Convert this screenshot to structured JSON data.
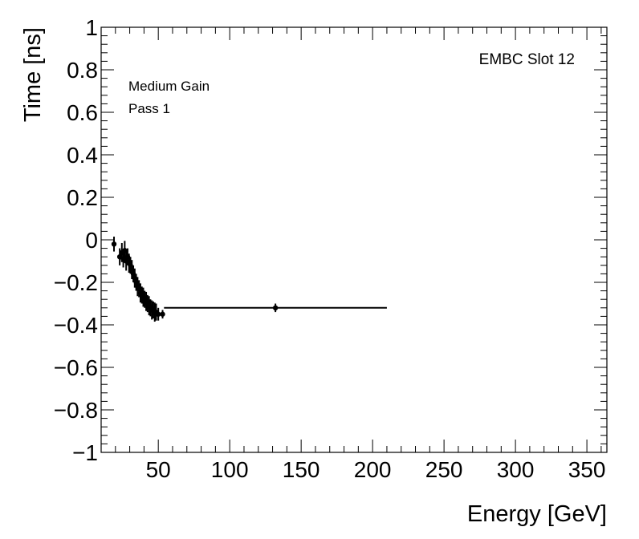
{
  "chart_data": {
    "type": "scatter",
    "title": "",
    "xlabel": "Energy [GeV]",
    "ylabel": "Time [ns]",
    "xlim": [
      10,
      364
    ],
    "ylim": [
      -1,
      1
    ],
    "x_ticks": [
      50,
      100,
      150,
      200,
      250,
      300,
      350
    ],
    "x_tick_labels": [
      "50",
      "100",
      "150",
      "200",
      "250",
      "300",
      "350"
    ],
    "y_ticks": [
      -1,
      -0.8,
      -0.6,
      -0.4,
      -0.2,
      0,
      0.2,
      0.4,
      0.6,
      0.8,
      1
    ],
    "y_tick_labels": [
      "−1",
      "−0.8",
      "−0.6",
      "−0.4",
      "−0.2",
      "0",
      "0.2",
      "0.4",
      "0.6",
      "0.8",
      "1"
    ],
    "grid": false,
    "annotations": {
      "slot": "EMBC Slot 12",
      "gain": "Medium Gain",
      "pass": "Pass 1"
    },
    "series": [
      {
        "values": [
          {
            "x": 19.0,
            "y": -0.02,
            "xerr": 1.0,
            "yerr": 0.035
          },
          {
            "x": 23.0,
            "y": -0.08,
            "xerr": 0.5,
            "yerr": 0.04
          },
          {
            "x": 24.5,
            "y": -0.06,
            "xerr": 0.5,
            "yerr": 0.045
          },
          {
            "x": 25.5,
            "y": -0.09,
            "xerr": 0.5,
            "yerr": 0.04
          },
          {
            "x": 26.5,
            "y": -0.05,
            "xerr": 0.5,
            "yerr": 0.045
          },
          {
            "x": 27.5,
            "y": -0.1,
            "xerr": 0.5,
            "yerr": 0.045
          },
          {
            "x": 28.5,
            "y": -0.08,
            "xerr": 0.5,
            "yerr": 0.04
          },
          {
            "x": 29.5,
            "y": -0.11,
            "xerr": 0.5,
            "yerr": 0.045
          },
          {
            "x": 30.5,
            "y": -0.12,
            "xerr": 0.5,
            "yerr": 0.04
          },
          {
            "x": 31.5,
            "y": -0.14,
            "xerr": 0.5,
            "yerr": 0.045
          },
          {
            "x": 32.5,
            "y": -0.16,
            "xerr": 0.5,
            "yerr": 0.04
          },
          {
            "x": 33.5,
            "y": -0.18,
            "xerr": 0.5,
            "yerr": 0.045
          },
          {
            "x": 34.5,
            "y": -0.2,
            "xerr": 0.5,
            "yerr": 0.04
          },
          {
            "x": 35.5,
            "y": -0.22,
            "xerr": 0.5,
            "yerr": 0.045
          },
          {
            "x": 36.5,
            "y": -0.23,
            "xerr": 0.5,
            "yerr": 0.04
          },
          {
            "x": 37.5,
            "y": -0.25,
            "xerr": 0.5,
            "yerr": 0.045
          },
          {
            "x": 38.5,
            "y": -0.26,
            "xerr": 0.5,
            "yerr": 0.04
          },
          {
            "x": 39.5,
            "y": -0.27,
            "xerr": 0.5,
            "yerr": 0.045
          },
          {
            "x": 40.5,
            "y": -0.28,
            "xerr": 0.5,
            "yerr": 0.04
          },
          {
            "x": 41.5,
            "y": -0.29,
            "xerr": 0.5,
            "yerr": 0.045
          },
          {
            "x": 42.5,
            "y": -0.3,
            "xerr": 0.5,
            "yerr": 0.04
          },
          {
            "x": 43.5,
            "y": -0.31,
            "xerr": 0.5,
            "yerr": 0.045
          },
          {
            "x": 44.5,
            "y": -0.32,
            "xerr": 0.5,
            "yerr": 0.04
          },
          {
            "x": 45.5,
            "y": -0.33,
            "xerr": 0.5,
            "yerr": 0.045
          },
          {
            "x": 46.5,
            "y": -0.33,
            "xerr": 0.5,
            "yerr": 0.04
          },
          {
            "x": 47.5,
            "y": -0.34,
            "xerr": 0.5,
            "yerr": 0.045
          },
          {
            "x": 48.5,
            "y": -0.34,
            "xerr": 0.5,
            "yerr": 0.04
          },
          {
            "x": 50.0,
            "y": -0.35,
            "xerr": 1.0,
            "yerr": 0.03
          },
          {
            "x": 53.0,
            "y": -0.35,
            "xerr": 1.5,
            "yerr": 0.02
          },
          {
            "x": 132.0,
            "y": -0.32,
            "xerr": 78.0,
            "yerr": 0.02
          }
        ]
      }
    ]
  }
}
